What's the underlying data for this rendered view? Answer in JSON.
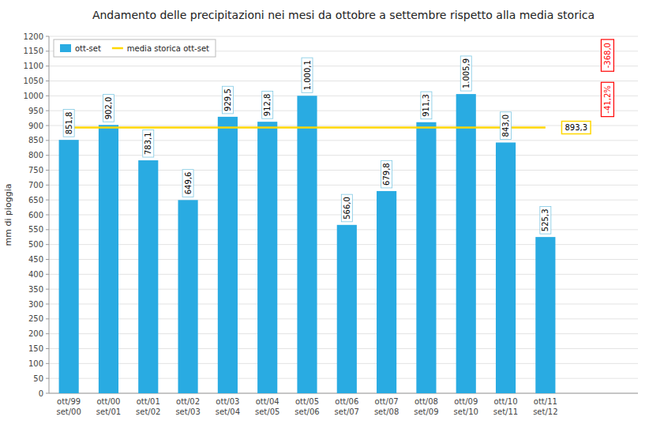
{
  "chart_data": {
    "type": "bar",
    "title": "Andamento delle precipitazioni nei mesi da ottobre a settembre rispetto alla media storica",
    "categories": [
      "ott/99\nset/00",
      "ott/00\nset/01",
      "ott/01\nset/02",
      "ott/02\nset/03",
      "ott/03\nset/04",
      "ott/04\nset/05",
      "ott/05\nset/06",
      "ott/06\nset/07",
      "ott/07\nset/08",
      "ott/08\nset/09",
      "ott/09\nset/10",
      "ott/10\nset/11",
      "ott/11\nset/12"
    ],
    "series": [
      {
        "name": "ott-set",
        "type": "bar",
        "color": "#29ABE2",
        "values": [
          851.8,
          902.0,
          783.1,
          649.6,
          929.5,
          912.8,
          1000.1,
          566.0,
          679.8,
          911.3,
          1005.9,
          843.0,
          525.3
        ],
        "value_labels": [
          "851,8",
          "902,0",
          "783,1",
          "649,6",
          "929,5",
          "912,8",
          "1.000,1",
          "566,0",
          "679,8",
          "911,3",
          "1.005,9",
          "843,0",
          "525,3"
        ]
      },
      {
        "name": "media storica ott-set",
        "type": "line",
        "color": "#FFD700",
        "values": [
          893.3,
          893.3,
          893.3,
          893.3,
          893.3,
          893.3,
          893.3,
          893.3,
          893.3,
          893.3,
          893.3,
          893.3,
          893.3
        ]
      }
    ],
    "ylabel": "mm di pioggia",
    "ylim": [
      0,
      1200
    ],
    "yticks": [
      0,
      50,
      100,
      150,
      200,
      250,
      300,
      350,
      400,
      450,
      500,
      550,
      600,
      650,
      700,
      750,
      800,
      850,
      900,
      950,
      1000,
      1050,
      1100,
      1150,
      1200
    ],
    "grid": true,
    "legend": "upper left",
    "data_labels": true,
    "annotations": [
      {
        "text": "893,3",
        "value": 893.3,
        "color": "#FFD700"
      },
      {
        "text": "-368,0",
        "color": "#FF0000"
      },
      {
        "text": "-41,2%",
        "color": "#FF0000"
      }
    ]
  }
}
